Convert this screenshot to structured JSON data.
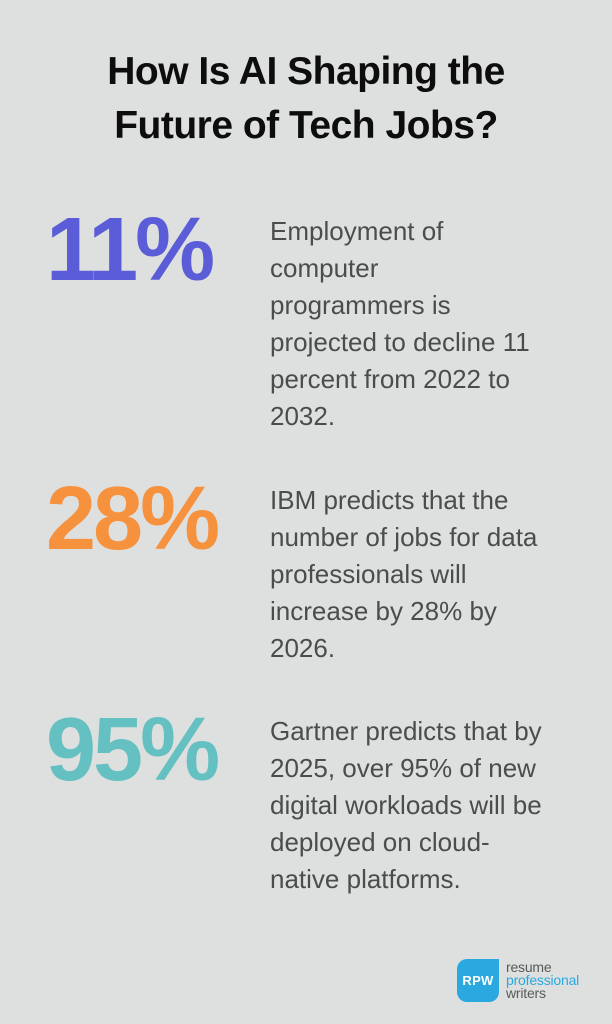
{
  "page": {
    "background_color": "#dee0df"
  },
  "title": {
    "text": "How Is AI Shaping the\nFuture of Tech Jobs?",
    "color": "#0d0d0d"
  },
  "body_text_color": "#4b4d4c",
  "stats": [
    {
      "value": "11%",
      "color": "#5b5cd7",
      "description": "Employment of\ncomputer\nprogrammers is\nprojected to decline 11\npercent from 2022 to\n2032."
    },
    {
      "value": "28%",
      "color": "#f6913d",
      "description": "IBM predicts that the\nnumber of jobs for data\nprofessionals will\nincrease by 28% by\n2026."
    },
    {
      "value": "95%",
      "color": "#65c0c1",
      "description": "Gartner predicts that by\n2025, over 95% of new\ndigital workloads will be\ndeployed on cloud-\nnative platforms."
    }
  ],
  "logo": {
    "monogram": "RPW",
    "monogram_color": "#ffffff",
    "badge_color": "#2aa9e0",
    "word1": "resume",
    "word2": "professional",
    "word3": "writers",
    "word_gray_color": "#58595b",
    "word_accent_color": "#2aa9e0"
  }
}
